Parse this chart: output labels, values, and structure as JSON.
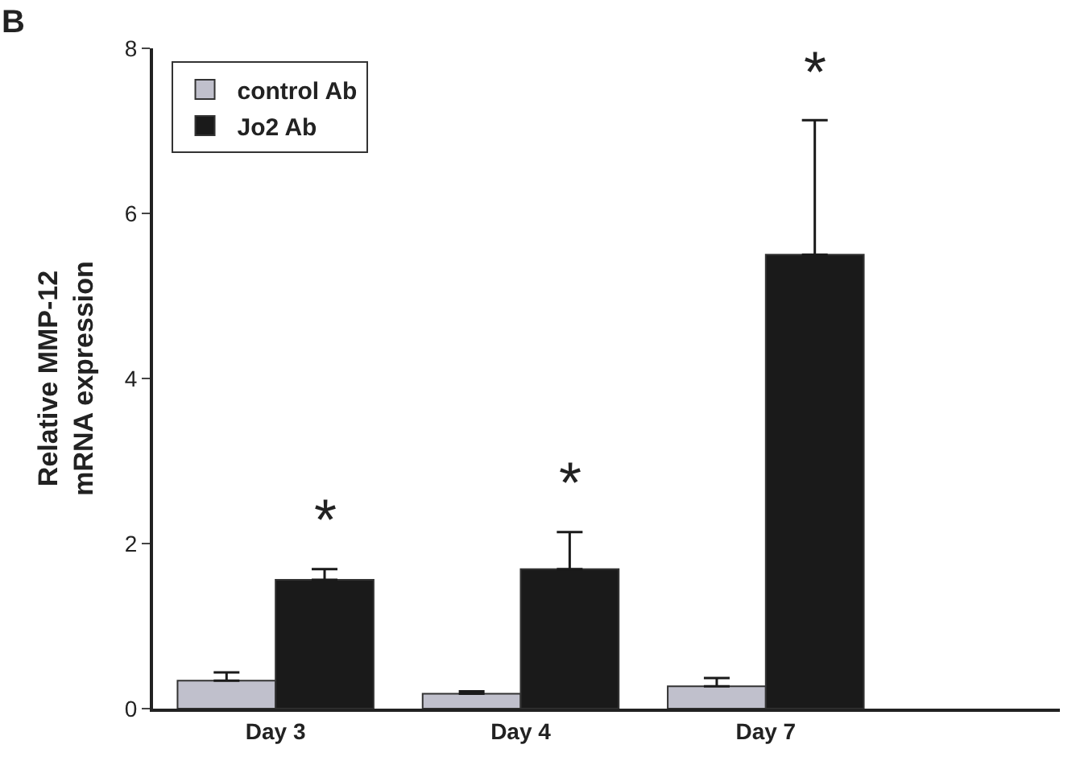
{
  "chart_data": {
    "type": "bar",
    "ylabel": "Relative MMP-12\nmRNA expression",
    "categories": [
      "Day 3",
      "Day 4",
      "Day 7"
    ],
    "series": [
      {
        "name": "control Ab",
        "color": "#c0c0cc",
        "values": [
          0.34,
          0.18,
          0.27
        ],
        "errors": [
          [
            0.34,
            0.44
          ],
          [
            0.18,
            0.21
          ],
          [
            0.27,
            0.37
          ]
        ]
      },
      {
        "name": "Jo2 Ab",
        "color": "#1a1a1a",
        "values": [
          1.56,
          1.69,
          5.5
        ],
        "errors": [
          [
            1.56,
            1.69
          ],
          [
            1.69,
            2.14
          ],
          [
            5.5,
            7.13
          ]
        ]
      }
    ],
    "annotations": [
      "B",
      "*",
      "*",
      "*"
    ],
    "ylim": [
      0,
      8
    ],
    "yticks": [
      0,
      2,
      4,
      6,
      8
    ],
    "legend": "top left"
  }
}
